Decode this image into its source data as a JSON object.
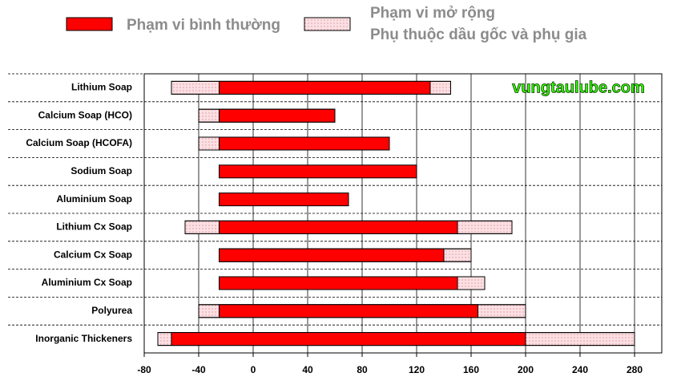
{
  "chart_data": {
    "type": "range-bar",
    "categories": [
      "Lithium Soap",
      "Calcium Soap (HCO)",
      "Calcium Soap (HCOFA)",
      "Sodium Soap",
      "Aluminium Soap",
      "Lithium Cx Soap",
      "Calcium Cx Soap",
      "Aluminium Cx Soap",
      "Polyurea",
      "Inorganic Thickeners"
    ],
    "series": [
      {
        "name": "Phạm vi mở rộng",
        "color": "#fbe0e3",
        "low": [
          -60,
          -40,
          -40,
          null,
          null,
          -50,
          -25,
          -25,
          -40,
          -70
        ],
        "high": [
          145,
          60,
          100,
          null,
          null,
          190,
          160,
          170,
          200,
          280
        ]
      },
      {
        "name": "Phạm vi bình thường",
        "color": "#ff0000",
        "low": [
          -25,
          -25,
          -25,
          -25,
          -25,
          -25,
          -25,
          -25,
          -25,
          -60
        ],
        "high": [
          130,
          60,
          100,
          120,
          70,
          150,
          140,
          150,
          165,
          200
        ]
      }
    ],
    "legend_note": "Phụ thuộc dầu gốc và phụ gia",
    "annotation": "vungtaulube.com",
    "xlim": [
      -80,
      300
    ],
    "xticks": [
      -80,
      -40,
      0,
      40,
      80,
      120,
      160,
      200,
      240,
      280
    ],
    "grid": true
  }
}
